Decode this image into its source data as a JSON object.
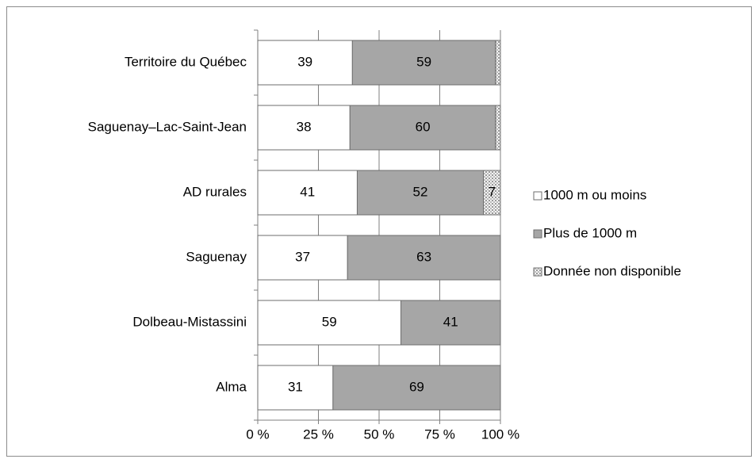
{
  "chart_data": {
    "type": "stacked_barh",
    "categories": [
      "Territoire du Québec",
      "Saguenay–Lac-Saint-Jean",
      "AD rurales",
      "Saguenay",
      "Dolbeau-Mistassini",
      "Alma"
    ],
    "series": [
      {
        "name": "1000 m ou moins",
        "color": "#ffffff",
        "values": [
          39,
          38,
          41,
          37,
          59,
          31
        ]
      },
      {
        "name": "Plus de 1000 m",
        "color": "#a6a6a6",
        "values": [
          59,
          60,
          52,
          63,
          41,
          69
        ]
      },
      {
        "name": "Donnée non disponible",
        "color": "pattern",
        "values": [
          2,
          2,
          7,
          0,
          0,
          0
        ],
        "value_labels": [
          null,
          null,
          "7",
          null,
          null,
          null
        ]
      }
    ],
    "xlim": [
      0,
      100
    ],
    "xticks": [
      {
        "value": 0,
        "label": "0 %"
      },
      {
        "value": 25,
        "label": "25 %"
      },
      {
        "value": 50,
        "label": "50 %"
      },
      {
        "value": 75,
        "label": "75 %"
      },
      {
        "value": 100,
        "label": "100 %"
      }
    ],
    "grid": true,
    "legend": "right"
  }
}
